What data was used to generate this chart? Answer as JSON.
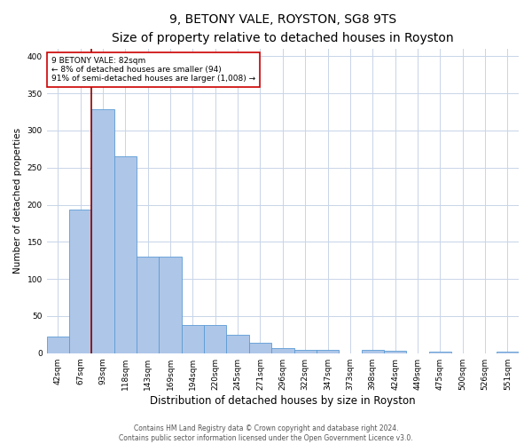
{
  "title": "9, BETONY VALE, ROYSTON, SG8 9TS",
  "subtitle": "Size of property relative to detached houses in Royston",
  "xlabel": "Distribution of detached houses by size in Royston",
  "ylabel": "Number of detached properties",
  "categories": [
    "42sqm",
    "67sqm",
    "93sqm",
    "118sqm",
    "143sqm",
    "169sqm",
    "194sqm",
    "220sqm",
    "245sqm",
    "271sqm",
    "296sqm",
    "322sqm",
    "347sqm",
    "373sqm",
    "398sqm",
    "424sqm",
    "449sqm",
    "475sqm",
    "500sqm",
    "526sqm",
    "551sqm"
  ],
  "values": [
    22,
    193,
    328,
    265,
    130,
    130,
    38,
    38,
    25,
    14,
    7,
    5,
    4,
    0,
    4,
    3,
    0,
    2,
    0,
    0,
    2
  ],
  "bar_color": "#aec6e8",
  "bar_edge_color": "#5b9bd5",
  "grid_color": "#c8d4e8",
  "property_line_x": 1.5,
  "annotation_title": "9 BETONY VALE: 82sqm",
  "annotation_line1": "← 8% of detached houses are smaller (94)",
  "annotation_line2": "91% of semi-detached houses are larger (1,008) →",
  "annotation_box_color": "#ffffff",
  "annotation_box_edge": "#cc0000",
  "property_line_color": "#8b0000",
  "footer_line1": "Contains HM Land Registry data © Crown copyright and database right 2024.",
  "footer_line2": "Contains public sector information licensed under the Open Government Licence v3.0.",
  "ylim": [
    0,
    410
  ],
  "title_fontsize": 10,
  "subtitle_fontsize": 9,
  "xlabel_fontsize": 8.5,
  "ylabel_fontsize": 7.5,
  "tick_fontsize": 6.5,
  "annotation_fontsize": 6.5,
  "footer_fontsize": 5.5
}
